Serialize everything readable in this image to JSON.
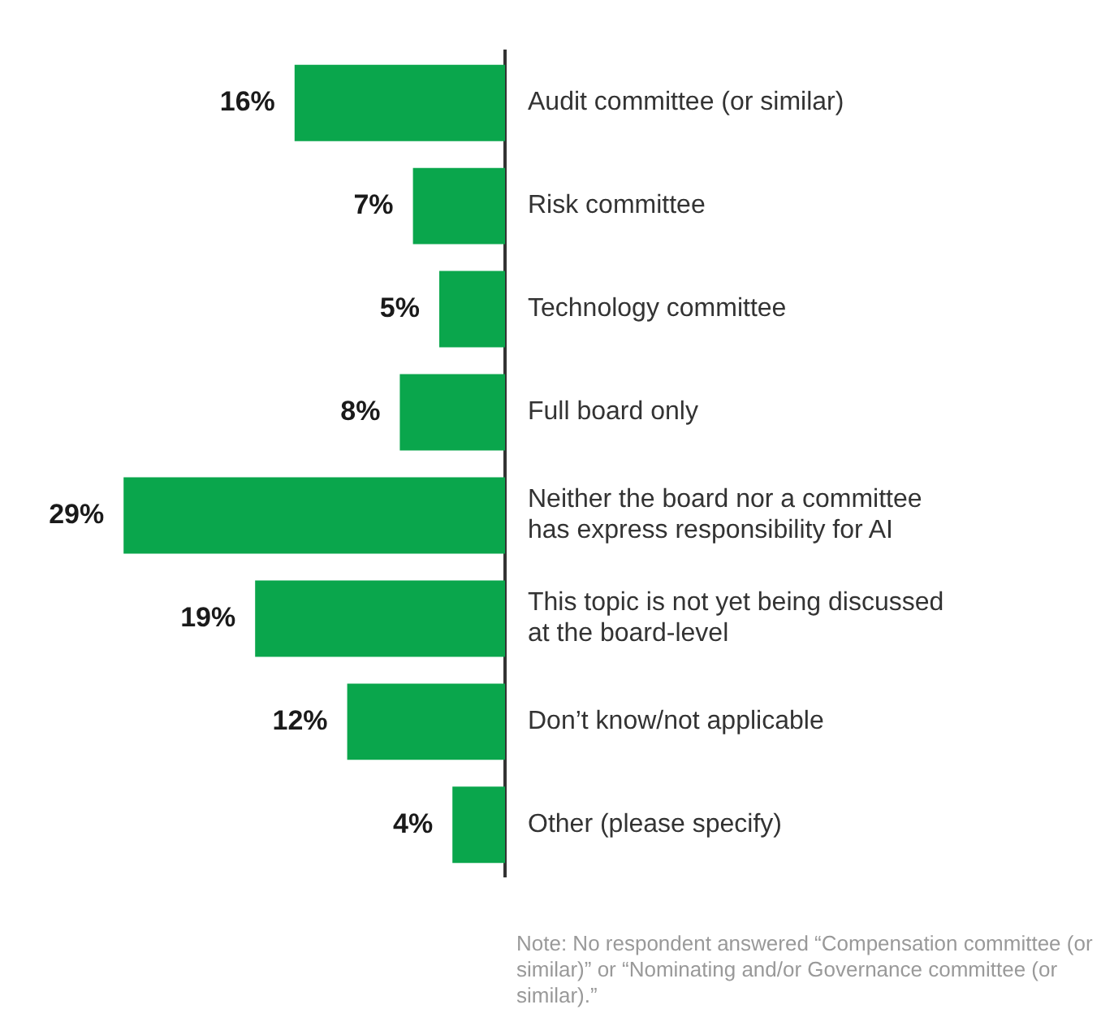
{
  "chart_data": {
    "type": "bar",
    "orientation": "horizontal",
    "categories": [
      "Audit committee (or similar)",
      "Risk committee",
      "Technology committee",
      "Full board only",
      "Neither the board nor a committee\nhas express responsibility for AI",
      "This topic is not yet being discussed\nat the board-level",
      "Don’t know/not applicable",
      "Other (please specify)"
    ],
    "values": [
      16,
      7,
      5,
      8,
      29,
      19,
      12,
      4
    ],
    "value_labels": [
      "16%",
      "7%",
      "5%",
      "8%",
      "29%",
      "19%",
      "12%",
      "4%"
    ],
    "color": "#0aa64c",
    "annotations": [
      "Note: No respondent answered “Compensation committee (or similar)” or “Nominating and/or Governance committee (or similar).”"
    ]
  }
}
